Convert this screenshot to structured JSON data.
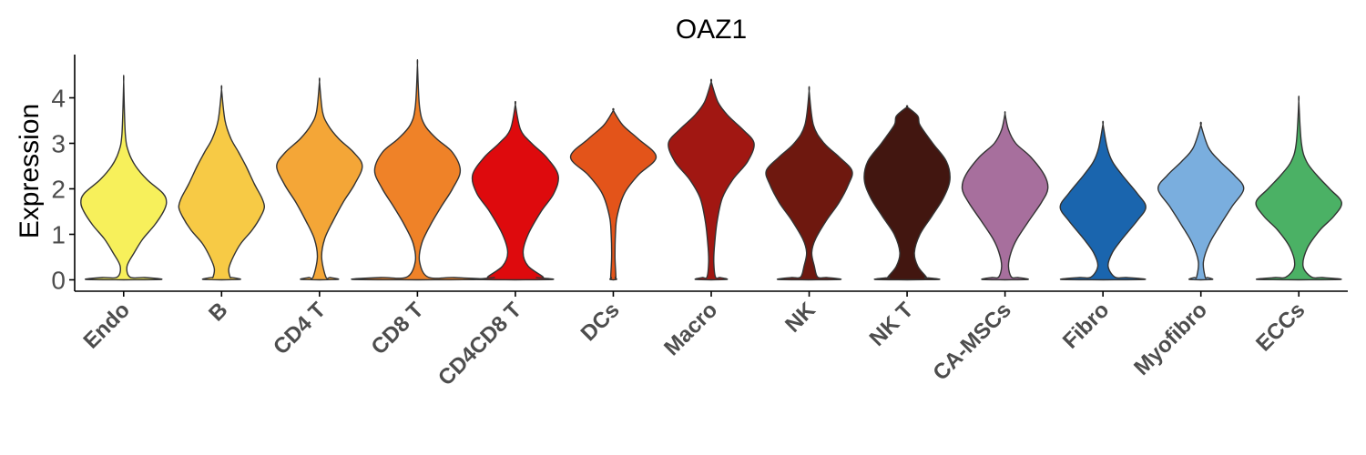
{
  "chart_data": {
    "type": "violin",
    "title": "OAZ1",
    "xlabel": "",
    "ylabel": "Expression",
    "ylim": [
      -0.25,
      4.95
    ],
    "yticks": [
      0,
      1,
      2,
      3,
      4
    ],
    "grid": false,
    "legend": "none",
    "categories": [
      "Endo",
      "B",
      "CD4 T",
      "CD8 T",
      "CD4CD8 T",
      "DCs",
      "Macro",
      "NK",
      "NK T",
      "CA-MSCs",
      "Fibro",
      "Myofibro",
      "ECCs"
    ],
    "colors": [
      "#F7F05B",
      "#F7CA45",
      "#F4A637",
      "#EF8228",
      "#DE0A0D",
      "#E3541A",
      "#A11712",
      "#6E180F",
      "#421610",
      "#A76F9D",
      "#1A65AE",
      "#7AAEDE",
      "#4BB165"
    ],
    "series": [
      {
        "max": 4.35,
        "zero_w": 0.9,
        "neck": 2.5,
        "profile": [
          [
            0.06,
            0.15
          ],
          [
            0.3,
            0.08
          ],
          [
            0.6,
            0.25
          ],
          [
            0.9,
            0.45
          ],
          [
            1.2,
            0.72
          ],
          [
            1.5,
            0.93
          ],
          [
            1.7,
            1.0
          ],
          [
            1.9,
            0.92
          ],
          [
            2.2,
            0.55
          ],
          [
            2.5,
            0.28
          ],
          [
            2.8,
            0.12
          ],
          [
            3.2,
            0.04
          ],
          [
            4.35,
            0
          ]
        ]
      },
      {
        "max": 4.18,
        "zero_w": 0.45,
        "neck": 2.0,
        "profile": [
          [
            0.06,
            0.2
          ],
          [
            0.25,
            0.17
          ],
          [
            0.5,
            0.27
          ],
          [
            0.8,
            0.45
          ],
          [
            1.1,
            0.72
          ],
          [
            1.4,
            0.92
          ],
          [
            1.6,
            1.0
          ],
          [
            1.8,
            0.94
          ],
          [
            2.1,
            0.77
          ],
          [
            2.5,
            0.57
          ],
          [
            2.8,
            0.4
          ],
          [
            3.1,
            0.22
          ],
          [
            3.5,
            0.08
          ],
          [
            4.18,
            0
          ]
        ]
      },
      {
        "max": 4.35,
        "zero_w": 0.45,
        "neck": 2.0,
        "profile": [
          [
            0.06,
            0.15
          ],
          [
            0.5,
            0.05
          ],
          [
            0.9,
            0.12
          ],
          [
            1.3,
            0.32
          ],
          [
            1.7,
            0.55
          ],
          [
            2.1,
            0.82
          ],
          [
            2.5,
            1.0
          ],
          [
            2.8,
            0.8
          ],
          [
            3.1,
            0.45
          ],
          [
            3.4,
            0.2
          ],
          [
            3.7,
            0.07
          ],
          [
            4.35,
            0
          ]
        ]
      },
      {
        "max": 4.72,
        "zero_w": 1.55,
        "neck": 4.0,
        "profile": [
          [
            0.06,
            0.25
          ],
          [
            0.4,
            0.05
          ],
          [
            0.8,
            0.1
          ],
          [
            1.2,
            0.3
          ],
          [
            1.6,
            0.55
          ],
          [
            2.0,
            0.82
          ],
          [
            2.4,
            1.0
          ],
          [
            2.8,
            0.82
          ],
          [
            3.1,
            0.45
          ],
          [
            3.4,
            0.17
          ],
          [
            3.8,
            0.05
          ],
          [
            4.72,
            0
          ]
        ]
      },
      {
        "max": 3.85,
        "zero_w": 0.9,
        "neck": 1.0,
        "profile": [
          [
            0.06,
            0.65
          ],
          [
            0.3,
            0.3
          ],
          [
            0.6,
            0.18
          ],
          [
            1.0,
            0.3
          ],
          [
            1.5,
            0.6
          ],
          [
            1.9,
            0.9
          ],
          [
            2.3,
            1.0
          ],
          [
            2.7,
            0.72
          ],
          [
            3.0,
            0.38
          ],
          [
            3.3,
            0.12
          ],
          [
            3.85,
            0
          ]
        ]
      },
      {
        "max": 3.72,
        "zero_w": 0.08,
        "neck": 0.4,
        "profile": [
          [
            0.06,
            0.06
          ],
          [
            0.5,
            0.04
          ],
          [
            1.0,
            0.05
          ],
          [
            1.4,
            0.09
          ],
          [
            1.9,
            0.26
          ],
          [
            2.3,
            0.58
          ],
          [
            2.7,
            1.0
          ],
          [
            3.1,
            0.58
          ],
          [
            3.4,
            0.22
          ],
          [
            3.72,
            0
          ]
        ]
      },
      {
        "max": 4.35,
        "zero_w": 0.38,
        "neck": 0.8,
        "profile": [
          [
            0.06,
            0.1
          ],
          [
            0.4,
            0.06
          ],
          [
            0.8,
            0.08
          ],
          [
            1.3,
            0.14
          ],
          [
            1.8,
            0.26
          ],
          [
            2.2,
            0.5
          ],
          [
            2.6,
            0.85
          ],
          [
            3.0,
            1.0
          ],
          [
            3.3,
            0.74
          ],
          [
            3.6,
            0.4
          ],
          [
            3.9,
            0.16
          ],
          [
            4.35,
            0
          ]
        ]
      },
      {
        "max": 4.15,
        "zero_w": 0.75,
        "neck": 2.0,
        "profile": [
          [
            0.06,
            0.2
          ],
          [
            0.3,
            0.12
          ],
          [
            0.6,
            0.06
          ],
          [
            0.9,
            0.15
          ],
          [
            1.3,
            0.4
          ],
          [
            1.7,
            0.7
          ],
          [
            2.1,
            0.92
          ],
          [
            2.4,
            1.0
          ],
          [
            2.7,
            0.7
          ],
          [
            3.0,
            0.35
          ],
          [
            3.4,
            0.1
          ],
          [
            4.15,
            0
          ]
        ]
      },
      {
        "max": 3.8,
        "zero_w": 0.77,
        "neck": 0.9,
        "profile": [
          [
            0.06,
            0.45
          ],
          [
            0.3,
            0.25
          ],
          [
            0.6,
            0.17
          ],
          [
            1.0,
            0.3
          ],
          [
            1.4,
            0.58
          ],
          [
            1.8,
            0.85
          ],
          [
            2.2,
            1.0
          ],
          [
            2.6,
            0.92
          ],
          [
            3.0,
            0.6
          ],
          [
            3.4,
            0.3
          ],
          [
            3.6,
            0.25
          ],
          [
            3.8,
            0.0
          ]
        ]
      },
      {
        "max": 3.65,
        "zero_w": 0.55,
        "neck": 1.0,
        "profile": [
          [
            0.06,
            0.15
          ],
          [
            0.3,
            0.08
          ],
          [
            0.6,
            0.14
          ],
          [
            0.9,
            0.28
          ],
          [
            1.3,
            0.56
          ],
          [
            1.7,
            0.85
          ],
          [
            2.0,
            1.0
          ],
          [
            2.3,
            0.92
          ],
          [
            2.7,
            0.6
          ],
          [
            3.0,
            0.25
          ],
          [
            3.3,
            0.08
          ],
          [
            3.65,
            0
          ]
        ]
      },
      {
        "max": 3.42,
        "zero_w": 1.0,
        "neck": 1.2,
        "profile": [
          [
            0.06,
            0.28
          ],
          [
            0.3,
            0.12
          ],
          [
            0.6,
            0.22
          ],
          [
            0.9,
            0.45
          ],
          [
            1.3,
            0.8
          ],
          [
            1.6,
            1.0
          ],
          [
            1.9,
            0.8
          ],
          [
            2.3,
            0.45
          ],
          [
            2.6,
            0.22
          ],
          [
            2.9,
            0.1
          ],
          [
            3.42,
            0
          ]
        ]
      },
      {
        "max": 3.4,
        "zero_w": 0.28,
        "neck": 0.8,
        "profile": [
          [
            0.06,
            0.1
          ],
          [
            0.4,
            0.06
          ],
          [
            0.8,
            0.2
          ],
          [
            1.2,
            0.45
          ],
          [
            1.6,
            0.72
          ],
          [
            2.0,
            1.0
          ],
          [
            2.3,
            0.78
          ],
          [
            2.6,
            0.45
          ],
          [
            2.9,
            0.18
          ],
          [
            3.4,
            0
          ]
        ]
      },
      {
        "max": 3.92,
        "zero_w": 1.0,
        "neck": 1.4,
        "profile": [
          [
            0.06,
            0.3
          ],
          [
            0.3,
            0.1
          ],
          [
            0.7,
            0.2
          ],
          [
            1.1,
            0.5
          ],
          [
            1.4,
            0.82
          ],
          [
            1.7,
            1.0
          ],
          [
            2.0,
            0.72
          ],
          [
            2.3,
            0.42
          ],
          [
            2.6,
            0.18
          ],
          [
            3.0,
            0.06
          ],
          [
            3.92,
            0
          ]
        ]
      }
    ]
  }
}
